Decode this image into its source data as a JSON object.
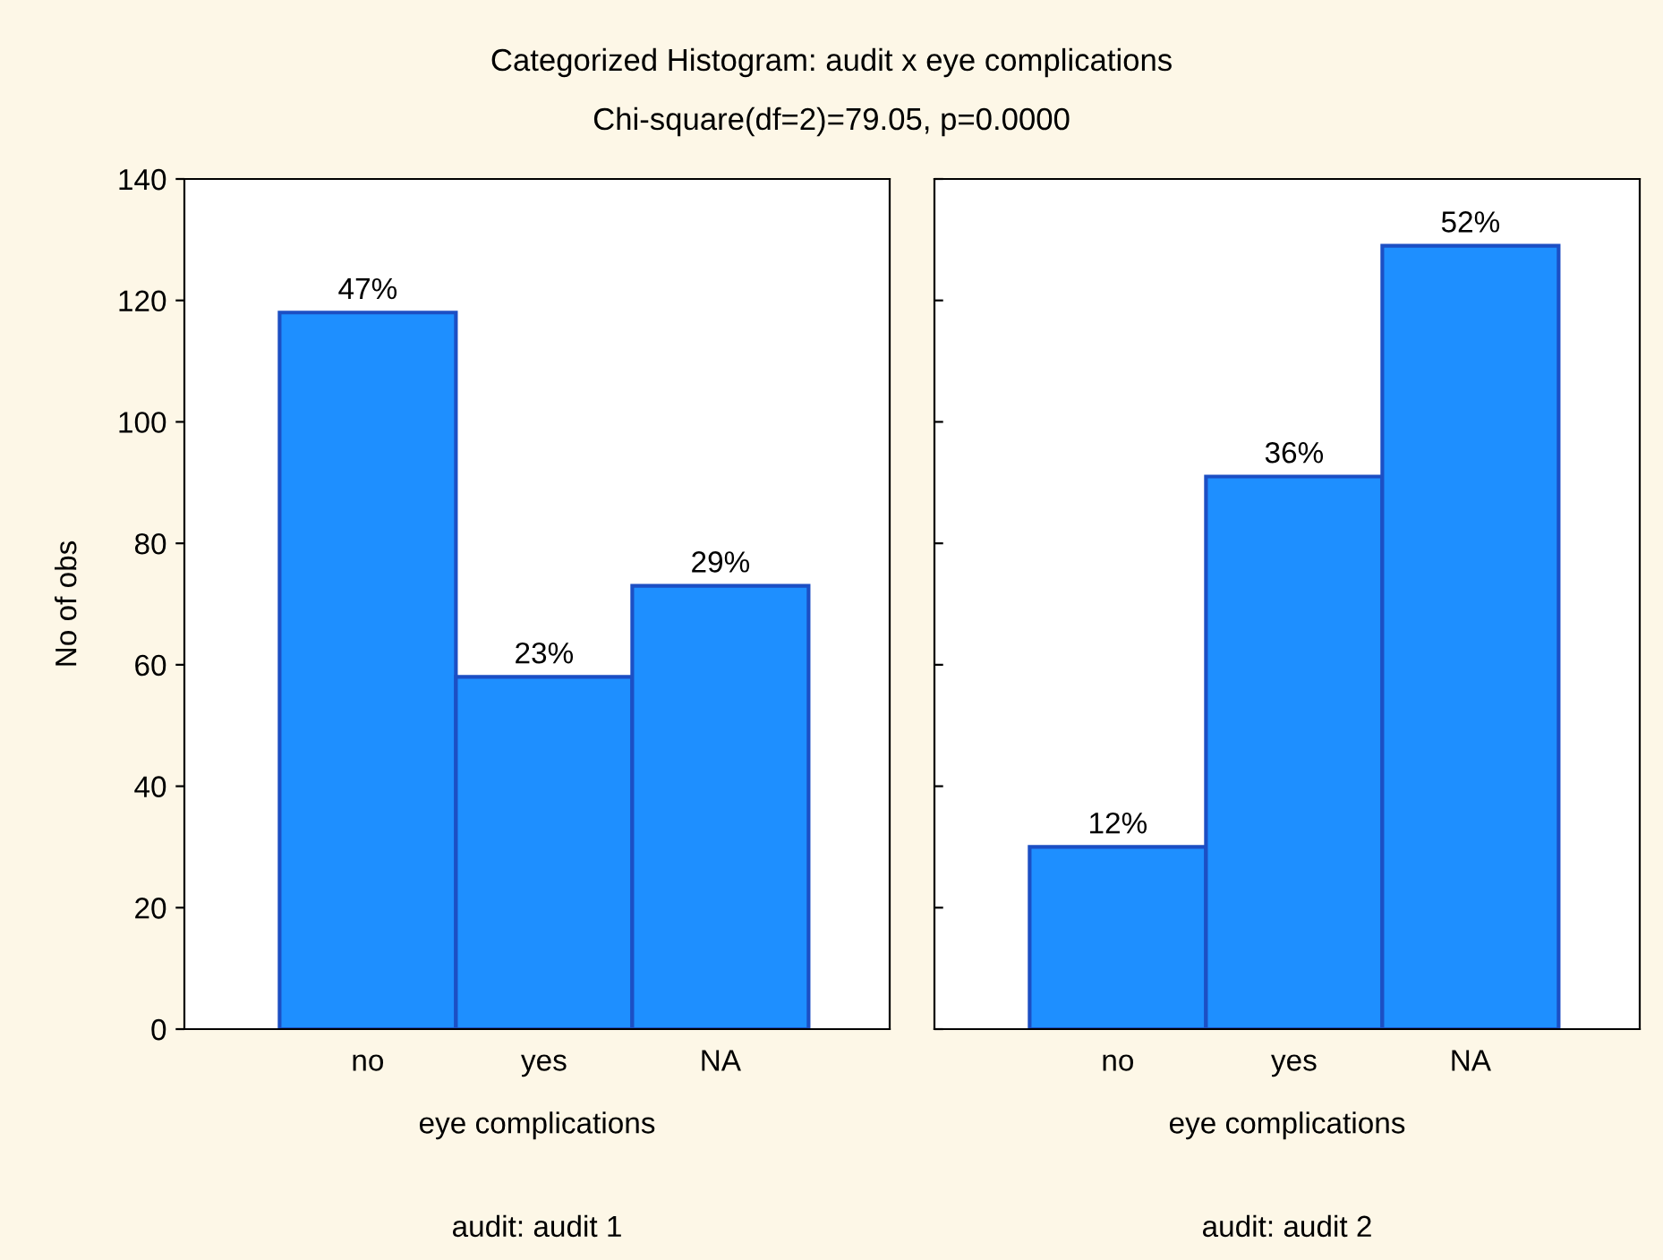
{
  "chart_data": [
    {
      "type": "bar",
      "title": "Categorized Histogram: audit x eye complications",
      "subtitle": "Chi-square(df=2)=79.05, p=0.0000",
      "categories": [
        "no",
        "yes",
        "NA"
      ],
      "values": [
        118,
        58,
        73
      ],
      "color": "#1e8fff",
      "xlabel": "eye complications",
      "ylabel": "No of obs",
      "annotations": [
        {
          "text": "47%",
          "x": "no",
          "y": 118
        },
        {
          "text": "23%",
          "x": "yes",
          "y": 58
        },
        {
          "text": "29%",
          "x": "NA",
          "y": 73
        },
        "audit: audit 1"
      ],
      "ylim": [
        0,
        140
      ],
      "yticks": [
        0,
        20,
        40,
        60,
        80,
        100,
        120,
        140
      ],
      "grid": false,
      "legend": false
    },
    {
      "type": "bar",
      "categories": [
        "no",
        "yes",
        "NA"
      ],
      "values": [
        30,
        91,
        129
      ],
      "color": "#1e8fff",
      "xlabel": "eye complications",
      "annotations": [
        {
          "text": "12%",
          "x": "no",
          "y": 30
        },
        {
          "text": "36%",
          "x": "yes",
          "y": 91
        },
        {
          "text": "52%",
          "x": "NA",
          "y": 129
        },
        "audit: audit 2"
      ],
      "ylim": [
        0,
        140
      ],
      "yticks": [
        0,
        20,
        40,
        60,
        80,
        100,
        120,
        140
      ],
      "tick_labels": "x",
      "grid": false,
      "legend": false
    }
  ]
}
